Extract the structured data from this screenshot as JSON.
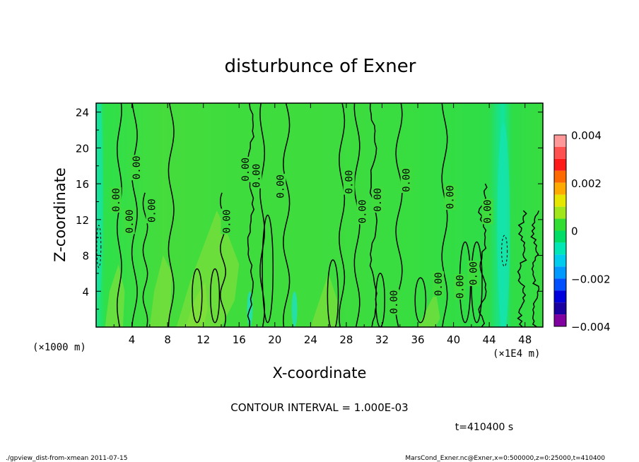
{
  "chart_data": {
    "type": "heatmap",
    "title": "disturbunce of Exner",
    "xlabel": "X-coordinate",
    "ylabel": "Z-coordinate",
    "x_unit_left": "(×1000 m)",
    "x_unit_right": "(×1E4 m)",
    "xlim": [
      0,
      50
    ],
    "ylim": [
      0,
      25
    ],
    "x_ticks": [
      "4",
      "8",
      "12",
      "16",
      "20",
      "24",
      "28",
      "32",
      "36",
      "40",
      "44",
      "48"
    ],
    "y_ticks": [
      "4",
      "8",
      "12",
      "16",
      "20",
      "24"
    ],
    "contour_interval_label": "CONTOUR INTERVAL = 1.000E-03",
    "time_label": "t=410400 s",
    "colorbar": {
      "range": [
        -0.004,
        0.004
      ],
      "tick_labels": [
        "0.004",
        "0.002",
        "0",
        "−0.002",
        "−0.004"
      ],
      "levels": [
        {
          "from": 0.0035,
          "to": 0.004,
          "color": "#ff9999"
        },
        {
          "from": 0.003,
          "to": 0.0035,
          "color": "#ff5050"
        },
        {
          "from": 0.0025,
          "to": 0.003,
          "color": "#ff1a1a"
        },
        {
          "from": 0.002,
          "to": 0.0025,
          "color": "#ff6a00"
        },
        {
          "from": 0.0015,
          "to": 0.002,
          "color": "#ffaa00"
        },
        {
          "from": 0.001,
          "to": 0.0015,
          "color": "#e6e600"
        },
        {
          "from": 0.0005,
          "to": 0.001,
          "color": "#a0e61a"
        },
        {
          "from": 0.0,
          "to": 0.0005,
          "color": "#33dd33"
        },
        {
          "from": -0.0005,
          "to": 0.0,
          "color": "#00dd66"
        },
        {
          "from": -0.001,
          "to": -0.0005,
          "color": "#00e6b4"
        },
        {
          "from": -0.0015,
          "to": -0.001,
          "color": "#00ccee"
        },
        {
          "from": -0.002,
          "to": -0.0015,
          "color": "#0099ff"
        },
        {
          "from": -0.0025,
          "to": -0.002,
          "color": "#0050ff"
        },
        {
          "from": -0.003,
          "to": -0.0025,
          "color": "#0000dd"
        },
        {
          "from": -0.0035,
          "to": -0.003,
          "color": "#1a00a0"
        },
        {
          "from": -0.004,
          "to": -0.0035,
          "color": "#8000a0"
        }
      ]
    },
    "contour_labels": [
      {
        "x": 2.2,
        "y": 14.2,
        "text": "0.00"
      },
      {
        "x": 4.5,
        "y": 17.8,
        "text": "0.00"
      },
      {
        "x": 3.7,
        "y": 11.8,
        "text": "0.00"
      },
      {
        "x": 6.2,
        "y": 13.0,
        "text": "0.00"
      },
      {
        "x": 14.6,
        "y": 11.8,
        "text": "0.00"
      },
      {
        "x": 16.7,
        "y": 17.6,
        "text": "0.00"
      },
      {
        "x": 17.9,
        "y": 16.9,
        "text": "0.00"
      },
      {
        "x": 20.6,
        "y": 15.7,
        "text": "0.00"
      },
      {
        "x": 28.3,
        "y": 16.2,
        "text": "0.00"
      },
      {
        "x": 29.8,
        "y": 12.9,
        "text": "0.00"
      },
      {
        "x": 31.5,
        "y": 14.2,
        "text": "0.00"
      },
      {
        "x": 34.7,
        "y": 16.4,
        "text": "0.00"
      },
      {
        "x": 33.3,
        "y": 2.8,
        "text": "0.00"
      },
      {
        "x": 38.3,
        "y": 4.8,
        "text": "0.00"
      },
      {
        "x": 40.7,
        "y": 4.5,
        "text": "0.00"
      },
      {
        "x": 42.2,
        "y": 6.0,
        "text": "0.00"
      },
      {
        "x": 39.6,
        "y": 14.5,
        "text": "0.00"
      },
      {
        "x": 43.8,
        "y": 12.9,
        "text": "0.00"
      }
    ]
  },
  "footer": {
    "left": "./gpview_dist-from-xmean  2011-07-15",
    "right": "MarsCond_Exner.nc@Exner,x=0:500000,z=0:25000,t=410400"
  }
}
